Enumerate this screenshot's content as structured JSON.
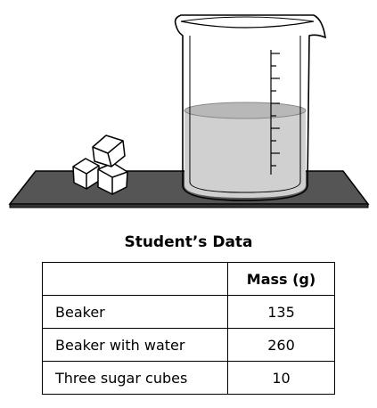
{
  "table": {
    "title": "Student’s Data",
    "header_label": "",
    "header_value": "Mass (g)",
    "rows": [
      {
        "label": "Beaker",
        "value": "135"
      },
      {
        "label": "Beaker with water",
        "value": "260"
      },
      {
        "label": "Three sugar cubes",
        "value": "10"
      }
    ]
  },
  "colors": {
    "table_surface": "#555555",
    "water": "#d0d0d0",
    "water_surface": "#b8b8b8",
    "outline": "#000000"
  },
  "icons": [
    "beaker-icon",
    "sugar-cube-icon",
    "table-surface-icon"
  ]
}
